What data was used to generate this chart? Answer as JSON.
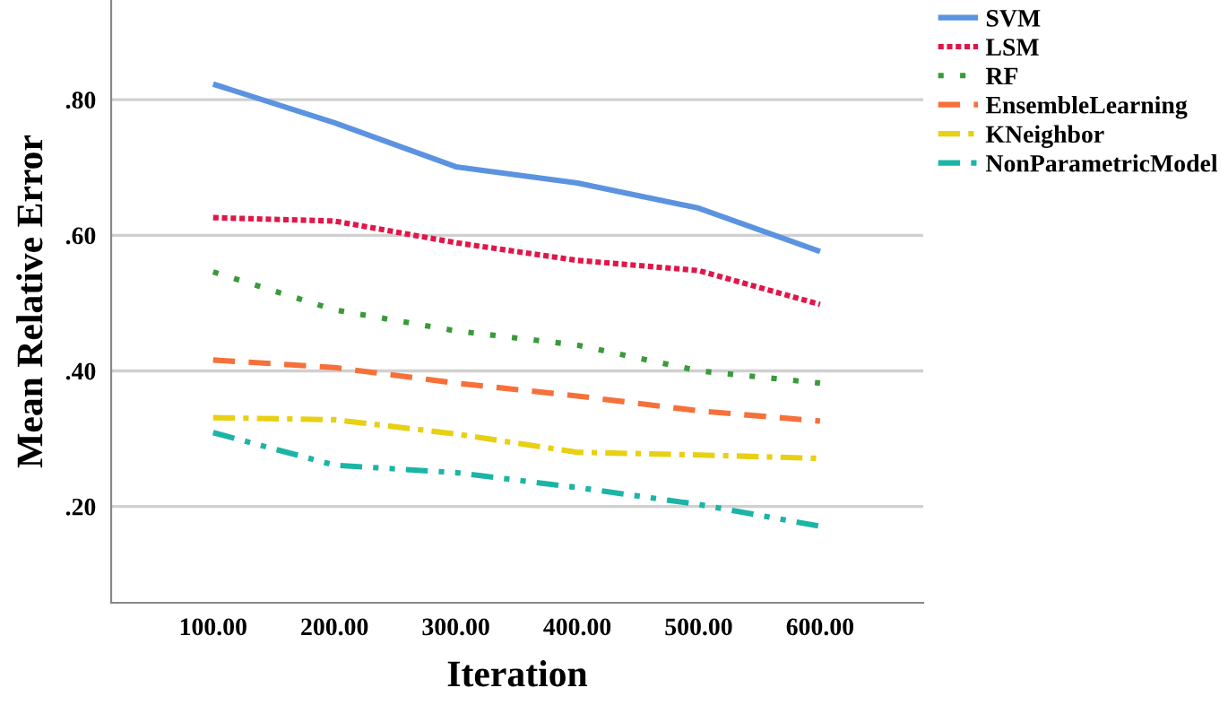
{
  "chart_data": {
    "type": "line",
    "xlabel": "Iteration",
    "ylabel": "Mean Relative Error",
    "x": [
      100,
      200,
      300,
      400,
      500,
      600
    ],
    "xlim": [
      16,
      685
    ],
    "ylim": [
      0.058,
      0.947
    ],
    "xticks": [
      {
        "value": 100,
        "label": "100.00"
      },
      {
        "value": 200,
        "label": "200.00"
      },
      {
        "value": 300,
        "label": "300.00"
      },
      {
        "value": 400,
        "label": "400.00"
      },
      {
        "value": 500,
        "label": "500.00"
      },
      {
        "value": 600,
        "label": "600.00"
      }
    ],
    "yticks": [
      {
        "value": 0.2,
        "label": ".20"
      },
      {
        "value": 0.4,
        "label": ".40"
      },
      {
        "value": 0.6,
        "label": ".60"
      },
      {
        "value": 0.8,
        "label": ".80"
      }
    ],
    "grid": "y",
    "legend": "top right",
    "marker": "none",
    "series": [
      {
        "name": "SVM",
        "color": "#5b93e0",
        "line_style": "solid",
        "values": [
          0.823,
          0.766,
          0.701,
          0.677,
          0.64,
          0.576
        ]
      },
      {
        "name": "LSM",
        "color": "#e0164a",
        "line_style": "dotted",
        "values": [
          0.626,
          0.621,
          0.589,
          0.563,
          0.548,
          0.498
        ]
      },
      {
        "name": "RF",
        "color": "#3a9a3a",
        "line_style": "loosely dotted",
        "values": [
          0.546,
          0.49,
          0.459,
          0.438,
          0.4,
          0.382
        ]
      },
      {
        "name": "EnsembleLearning",
        "color": "#f6703a",
        "line_style": "dashed",
        "values": [
          0.416,
          0.405,
          0.382,
          0.363,
          0.341,
          0.326
        ]
      },
      {
        "name": "KNeighbor",
        "color": "#e8d012",
        "line_style": "dashdot",
        "values": [
          0.331,
          0.328,
          0.307,
          0.28,
          0.276,
          0.271
        ]
      },
      {
        "name": "NonParametricModel",
        "color": "#1bb5a5",
        "line_style": "dashdotdot",
        "values": [
          0.309,
          0.261,
          0.25,
          0.228,
          0.203,
          0.171
        ]
      }
    ]
  }
}
